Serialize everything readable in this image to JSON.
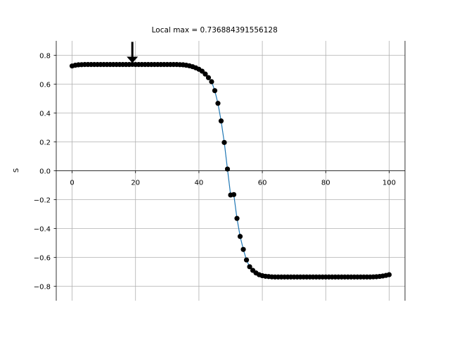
{
  "chart_data": {
    "type": "line",
    "title": "",
    "xlabel": "",
    "ylabel": "S",
    "xlim": [
      -5,
      105
    ],
    "ylim": [
      -0.9,
      0.9
    ],
    "grid": true,
    "spines": "centered at y=0 (bottom spine), left spine at x=-5, right spine at x=105",
    "x_ticks": [
      0,
      20,
      40,
      60,
      80,
      100
    ],
    "y_ticks": [
      -0.8,
      -0.6,
      -0.4,
      -0.2,
      0.0,
      0.2,
      0.4,
      0.6,
      0.8
    ],
    "x_tick_labels": [
      "0",
      "20",
      "40",
      "60",
      "80",
      "100"
    ],
    "y_tick_labels": [
      "−0.8",
      "−0.6",
      "−0.4",
      "−0.2",
      "0.0",
      "0.2",
      "0.4",
      "0.6",
      "0.8"
    ],
    "colors": {
      "line": "#1f77b4",
      "markers": "#000000",
      "grid": "#b0b0b0"
    },
    "series": [
      {
        "x": [
          0,
          1,
          2,
          3,
          4,
          5,
          6,
          7,
          8,
          9,
          10,
          11,
          12,
          13,
          14,
          15,
          16,
          17,
          18,
          19,
          20,
          21,
          22,
          23,
          24,
          25,
          26,
          27,
          28,
          29,
          30,
          31,
          32,
          33,
          34,
          35,
          36,
          37,
          38,
          39,
          40,
          41,
          42,
          43,
          44,
          45,
          46,
          47,
          48,
          49,
          50,
          51,
          52,
          53,
          54,
          55,
          56,
          57,
          58,
          59,
          60,
          61,
          62,
          63,
          64,
          65,
          66,
          67,
          68,
          69,
          70,
          71,
          72,
          73,
          74,
          75,
          76,
          77,
          78,
          79,
          80,
          81,
          82,
          83,
          84,
          85,
          86,
          87,
          88,
          89,
          90,
          91,
          92,
          93,
          94,
          95,
          96,
          97,
          98,
          99,
          100
        ],
        "y": [
          0.726,
          0.731,
          0.734,
          0.735,
          0.736,
          0.736,
          0.736,
          0.736,
          0.736,
          0.736,
          0.736,
          0.736,
          0.736,
          0.736,
          0.736,
          0.736,
          0.736,
          0.736,
          0.736,
          0.737,
          0.736,
          0.736,
          0.736,
          0.736,
          0.736,
          0.736,
          0.736,
          0.736,
          0.736,
          0.736,
          0.736,
          0.736,
          0.736,
          0.736,
          0.735,
          0.734,
          0.731,
          0.727,
          0.721,
          0.713,
          0.703,
          0.69,
          0.67,
          0.645,
          0.617,
          0.555,
          0.467,
          0.345,
          0.196,
          0.012,
          -0.168,
          -0.165,
          -0.33,
          -0.455,
          -0.545,
          -0.618,
          -0.665,
          -0.69,
          -0.708,
          -0.72,
          -0.727,
          -0.731,
          -0.733,
          -0.735,
          -0.736,
          -0.736,
          -0.736,
          -0.736,
          -0.736,
          -0.736,
          -0.736,
          -0.736,
          -0.736,
          -0.736,
          -0.736,
          -0.736,
          -0.736,
          -0.736,
          -0.736,
          -0.736,
          -0.736,
          -0.736,
          -0.736,
          -0.736,
          -0.736,
          -0.736,
          -0.736,
          -0.736,
          -0.736,
          -0.736,
          -0.736,
          -0.736,
          -0.736,
          -0.736,
          -0.736,
          -0.735,
          -0.734,
          -0.732,
          -0.729,
          -0.725,
          -0.72
        ]
      }
    ],
    "annotation": {
      "text": "Local max = 0.736884391556128",
      "x": 19,
      "y": 0.736884391556128,
      "arrow": "down"
    }
  }
}
